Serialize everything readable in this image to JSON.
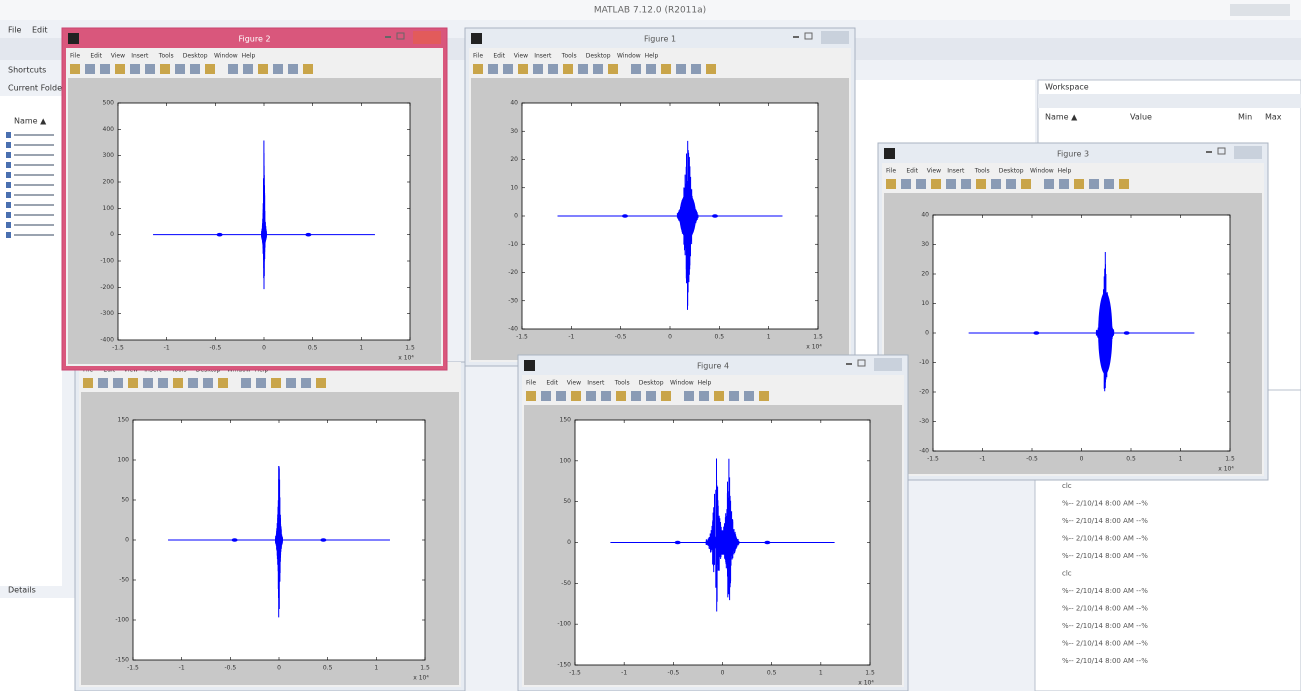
{
  "main_window": {
    "title": "MATLAB 7.12.0 (R2011a)",
    "menu": [
      "File",
      "Edit"
    ],
    "shortcuts": "Shortcuts",
    "current_folder": "Current Folder",
    "folder_column": "Name ▲",
    "details": "Details",
    "workspace": {
      "title": "Workspace",
      "columns": [
        "Name ▲",
        "Value",
        "Min",
        "Max"
      ]
    },
    "command_lines": [
      "clc",
      "%-- 2/10/14  8:00 AM --%",
      "%-- 2/10/14  8:00 AM --%",
      "%-- 2/10/14  8:00 AM --%",
      "%-- 2/10/14  8:00 AM --%",
      "clc",
      "%-- 2/10/14  8:00 AM --%",
      "%-- 2/10/14  8:00 AM --%",
      "%-- 2/10/14  8:00 AM --%",
      "%-- 2/10/14  8:00 AM --%",
      "%-- 2/10/14  8:00 AM --%"
    ]
  },
  "figure_menu": [
    "File",
    "Edit",
    "View",
    "Insert",
    "Tools",
    "Desktop",
    "Window",
    "Help"
  ],
  "figures": [
    {
      "title": "Figure 1",
      "yticks": [
        "40",
        "30",
        "20",
        "10",
        "0",
        "-10",
        "-20",
        "-30",
        "-40"
      ],
      "xticks": [
        "-1.5",
        "-1",
        "-0.5",
        "0",
        "0.5",
        "1",
        "1.5"
      ],
      "x_exponent": "x 10⁴"
    },
    {
      "title": "Figure 3",
      "yticks": [
        "40",
        "30",
        "20",
        "10",
        "0",
        "-10",
        "-20",
        "-30",
        "-40"
      ],
      "xticks": [
        "-1.5",
        "-1",
        "-0.5",
        "0",
        "0.5",
        "1",
        "1.5"
      ],
      "x_exponent": "x 10⁴"
    },
    {
      "yticks": [
        "150",
        "100",
        "50",
        "0",
        "-50",
        "-100",
        "-150"
      ],
      "xticks": [
        "-1.5",
        "-1",
        "-0.5",
        "0",
        "0.5",
        "1",
        "1.5"
      ],
      "x_exponent": "x 10⁴"
    },
    {
      "title": "Figure 4",
      "yticks": [
        "150",
        "100",
        "50",
        "0",
        "-50",
        "-100",
        "-150"
      ],
      "xticks": [
        "-1.5",
        "-1",
        "-0.5",
        "0",
        "0.5",
        "1",
        "1.5"
      ],
      "x_exponent": "x 10⁴"
    },
    {
      "title": "Figure 2",
      "yticks": [
        "500",
        "400",
        "300",
        "200",
        "100",
        "0",
        "-100",
        "-200",
        "-300",
        "-400"
      ],
      "xticks": [
        "-1.5",
        "-1",
        "-0.5",
        "0",
        "0.5",
        "1",
        "1.5"
      ],
      "x_exponent": "x 10⁴"
    }
  ]
}
